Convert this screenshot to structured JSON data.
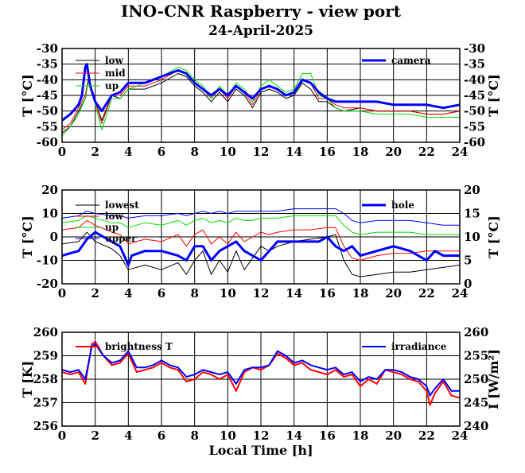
{
  "title": "INO-CNR Raspberry - view port",
  "subtitle": "24-April-2025",
  "colors": {
    "black": "#000000",
    "red": "#ff0000",
    "green": "#00dd00",
    "blue": "#0000ff"
  },
  "chart_data": [
    {
      "type": "line",
      "x_ticks": [
        "0",
        "2",
        "4",
        "6",
        "8",
        "10",
        "12",
        "14",
        "16",
        "18",
        "20",
        "22",
        "24"
      ],
      "xlim": [
        0,
        24
      ],
      "ylabel": "T [°C]",
      "ylabel_right": "T [°C]",
      "ylim": [
        -60,
        -30
      ],
      "y_ticks": [
        "-30",
        "-35",
        "-40",
        "-45",
        "-50",
        "-55",
        "-60"
      ],
      "y_ticks_right": [
        "-30",
        "-35",
        "-40",
        "-45",
        "-50",
        "-55",
        "-60"
      ],
      "grid": true,
      "series": [
        {
          "name": "low",
          "color": "#000000",
          "width": 1,
          "x": [
            0,
            0.5,
            1,
            1.4,
            1.6,
            2,
            2.4,
            3,
            3.5,
            4,
            5,
            6,
            7,
            7.5,
            8,
            8.5,
            9,
            9.5,
            10,
            10.5,
            11,
            11.5,
            12,
            12.5,
            13,
            13.5,
            14,
            14.5,
            15,
            15.5,
            16,
            16.5,
            17,
            18,
            19,
            20,
            21,
            22,
            23,
            24
          ],
          "y": [
            -57,
            -55,
            -50,
            -46,
            -40,
            -47,
            -53,
            -45,
            -46,
            -43,
            -43,
            -41,
            -38,
            -39,
            -42,
            -44,
            -47,
            -44,
            -47,
            -43,
            -45,
            -49,
            -44,
            -43,
            -44,
            -46,
            -45,
            -41,
            -43,
            -47,
            -47,
            -49,
            -50,
            -49,
            -50,
            -50,
            -50,
            -51,
            -51,
            -50
          ]
        },
        {
          "name": "mid",
          "color": "#ff0000",
          "width": 1,
          "x": [
            0,
            0.5,
            1,
            1.4,
            1.6,
            2,
            2.4,
            3,
            3.5,
            4,
            5,
            6,
            7,
            7.5,
            8,
            8.5,
            9,
            9.5,
            10,
            10.5,
            11,
            11.5,
            12,
            12.5,
            13,
            13.5,
            14,
            14.5,
            15,
            15.5,
            16,
            16.5,
            17,
            18,
            19,
            20,
            21,
            22,
            23,
            24
          ],
          "y": [
            -56,
            -54,
            -49,
            -45,
            -39,
            -47,
            -54,
            -45,
            -45,
            -42,
            -42,
            -40,
            -37,
            -38,
            -41,
            -43,
            -46,
            -43,
            -46,
            -42,
            -44,
            -48,
            -43,
            -42,
            -43,
            -45,
            -44,
            -40,
            -41,
            -46,
            -46,
            -48,
            -49,
            -49,
            -50,
            -50,
            -50,
            -51,
            -51,
            -50
          ]
        },
        {
          "name": "up",
          "color": "#00dd00",
          "width": 1,
          "x": [
            0,
            0.5,
            1,
            1.4,
            1.6,
            2,
            2.4,
            3,
            3.5,
            4,
            5,
            6,
            7,
            7.5,
            8,
            8.5,
            9,
            9.5,
            10,
            10.5,
            11,
            11.5,
            12,
            12.5,
            13,
            13.5,
            14,
            14.5,
            15,
            15.5,
            16,
            16.5,
            17,
            18,
            19,
            20,
            21,
            22,
            23,
            24
          ],
          "y": [
            -58,
            -55,
            -51,
            -46,
            -40,
            -48,
            -56,
            -46,
            -46,
            -43,
            -41,
            -39,
            -36,
            -37,
            -40,
            -42,
            -46,
            -42,
            -45,
            -41,
            -43,
            -47,
            -42,
            -40,
            -42,
            -44,
            -43,
            -38,
            -38,
            -45,
            -46,
            -49,
            -50,
            -50,
            -51,
            -51,
            -51,
            -52,
            -52,
            -52
          ]
        },
        {
          "name": "camera",
          "color": "#0000ff",
          "width": 3,
          "x": [
            0,
            0.5,
            1,
            1.2,
            1.4,
            1.5,
            1.7,
            2,
            2.4,
            3,
            3.5,
            4,
            5,
            6,
            7,
            7.5,
            8,
            8.5,
            9,
            9.5,
            10,
            10.5,
            11,
            11.5,
            12,
            12.5,
            13,
            13.5,
            14,
            14.5,
            15,
            15.5,
            16,
            16.5,
            17,
            18,
            19,
            20,
            21,
            22,
            23,
            24
          ],
          "y": [
            -53,
            -51,
            -48,
            -45,
            -36,
            -35,
            -42,
            -47,
            -50,
            -45,
            -44,
            -41,
            -41,
            -39,
            -37,
            -38,
            -41,
            -43,
            -45,
            -43,
            -45,
            -42,
            -44,
            -46,
            -43,
            -42,
            -43,
            -45,
            -44,
            -40,
            -41,
            -44,
            -46,
            -47,
            -47,
            -47,
            -47,
            -48,
            -48,
            -48,
            -49,
            -48
          ]
        }
      ],
      "legend": [
        "low",
        "mid",
        "up",
        "camera"
      ]
    },
    {
      "type": "line",
      "x_ticks": [
        "0",
        "2",
        "4",
        "6",
        "8",
        "10",
        "12",
        "14",
        "16",
        "18",
        "20",
        "22",
        "24"
      ],
      "xlim": [
        0,
        24
      ],
      "ylabel": "T [°C]",
      "ylabel_right": "T [°C]",
      "ylim": [
        -20,
        20
      ],
      "y_ticks": [
        "20",
        "10",
        "0",
        "-10",
        "-20"
      ],
      "ylim_right": [
        0,
        20
      ],
      "y_ticks_right": [
        "20",
        "15",
        "10",
        "5",
        "0"
      ],
      "grid": true,
      "series": [
        {
          "name": "lowest",
          "color": "#000000",
          "width": 1,
          "x": [
            0,
            1,
            1.5,
            2,
            3,
            3.5,
            4,
            5,
            6,
            7,
            7.5,
            8,
            8.5,
            9,
            9.5,
            10,
            10.5,
            11,
            11.5,
            12,
            12.5,
            13,
            14,
            15,
            16,
            16.5,
            17,
            17.5,
            18,
            19,
            20,
            21,
            22,
            23,
            24
          ],
          "y": [
            -3,
            -2,
            2,
            -2,
            -5,
            -8,
            -14,
            -12,
            -14,
            -11,
            -16,
            -10,
            -6,
            -16,
            -10,
            -15,
            -6,
            -14,
            -9,
            -4,
            -6,
            -4,
            -2,
            -1,
            0,
            1,
            -10,
            -16,
            -17,
            -16,
            -15,
            -15,
            -14,
            -13,
            -12
          ]
        },
        {
          "name": "low",
          "color": "#ff0000",
          "width": 1,
          "x": [
            0,
            1,
            1.5,
            2,
            3,
            3.5,
            4,
            5,
            6,
            7,
            7.5,
            8,
            8.5,
            9,
            9.5,
            10,
            10.5,
            11,
            11.5,
            12,
            12.5,
            13,
            14,
            15,
            16,
            16.5,
            17,
            17.5,
            18,
            19,
            20,
            21,
            22,
            23,
            24
          ],
          "y": [
            3,
            4,
            7,
            5,
            2,
            1,
            -3,
            -1,
            -2,
            1,
            -4,
            1,
            3,
            -3,
            0,
            -3,
            2,
            -2,
            0,
            2,
            1,
            2,
            3,
            3,
            4,
            4,
            -4,
            -9,
            -10,
            -8,
            -7,
            -7,
            -6,
            -6,
            -6
          ]
        },
        {
          "name": "up",
          "color": "#00dd00",
          "width": 1,
          "x": [
            0,
            1,
            1.5,
            2,
            3,
            3.5,
            4,
            5,
            6,
            7,
            7.5,
            8,
            8.5,
            9,
            9.5,
            10,
            10.5,
            11,
            11.5,
            12,
            12.5,
            13,
            14,
            15,
            16,
            16.5,
            17,
            17.5,
            18,
            19,
            20,
            21,
            22,
            23,
            24
          ],
          "y": [
            6,
            7,
            9,
            8,
            6,
            6,
            4,
            6,
            5,
            7,
            5,
            7,
            8,
            6,
            7,
            6,
            8,
            7,
            7,
            8,
            8,
            8,
            9,
            9,
            9,
            9,
            5,
            2,
            1,
            2,
            2,
            2,
            1,
            1,
            1
          ]
        },
        {
          "name": "upper",
          "color": "#0000ff",
          "width": 1,
          "x": [
            0,
            1,
            1.5,
            2,
            3,
            3.5,
            4,
            5,
            6,
            7,
            7.5,
            8,
            8.5,
            9,
            9.5,
            10,
            10.5,
            11,
            11.5,
            12,
            12.5,
            13,
            14,
            15,
            16,
            16.5,
            17,
            17.5,
            18,
            19,
            20,
            21,
            22,
            23,
            24
          ],
          "y": [
            8,
            9,
            11,
            10,
            9,
            9,
            8,
            9,
            9,
            10,
            9,
            10,
            11,
            10,
            11,
            10,
            11,
            11,
            11,
            11,
            11,
            11,
            12,
            12,
            12,
            12,
            10,
            7,
            6,
            7,
            7,
            7,
            6,
            5,
            5
          ]
        },
        {
          "name": "hole",
          "color": "#0000ff",
          "width": 3,
          "axis": "right",
          "x": [
            0,
            0.5,
            1,
            1.5,
            2,
            2.5,
            3,
            3.5,
            4,
            4.2,
            5,
            6,
            7,
            7.5,
            8,
            8.5,
            9,
            9.5,
            10,
            10.5,
            11,
            11.5,
            12,
            12.5,
            13,
            14,
            15,
            15.5,
            16,
            16.5,
            17,
            17.5,
            18,
            19,
            20,
            21,
            22,
            22.5,
            23,
            24
          ],
          "y": [
            6,
            6.5,
            7,
            9.5,
            11,
            10,
            9,
            8,
            4,
            6,
            7,
            7,
            6,
            5,
            8,
            8,
            5,
            7,
            8,
            9,
            7,
            6,
            5,
            7,
            9,
            9,
            9,
            9,
            10,
            8,
            7,
            8,
            6,
            7,
            8,
            7,
            5,
            7,
            6,
            6
          ]
        }
      ],
      "legend": [
        "lowest",
        "low",
        "up",
        "upper",
        "hole"
      ]
    },
    {
      "type": "line",
      "x_ticks": [
        "0",
        "2",
        "4",
        "6",
        "8",
        "10",
        "12",
        "14",
        "16",
        "18",
        "20",
        "22",
        "24"
      ],
      "xlim": [
        0,
        24
      ],
      "xlabel": "Local Time [h]",
      "ylabel": "T [K]",
      "ylabel_right": "I [W/m²]",
      "ylim": [
        256,
        260
      ],
      "y_ticks": [
        "260",
        "259",
        "258",
        "257",
        "256"
      ],
      "ylim_right": [
        240,
        260
      ],
      "y_ticks_right": [
        "260",
        "255",
        "250",
        "245",
        "240"
      ],
      "grid": true,
      "series": [
        {
          "name": "brightness T",
          "color": "#ff0000",
          "width": 2,
          "x": [
            0,
            0.5,
            1,
            1.4,
            1.8,
            2,
            2.5,
            3,
            3.5,
            4,
            4.5,
            5,
            5.5,
            6,
            6.5,
            7,
            7.5,
            8,
            8.5,
            9,
            9.5,
            10,
            10.5,
            11,
            11.5,
            12,
            12.5,
            13,
            13.5,
            14,
            14.5,
            15,
            15.5,
            16,
            16.5,
            17,
            17.5,
            18,
            18.5,
            19,
            19.5,
            20,
            20.5,
            21,
            21.5,
            22,
            22.2,
            22.5,
            23,
            23.5,
            24
          ],
          "y": [
            258.3,
            258.2,
            258.3,
            257.8,
            259.5,
            259.6,
            259,
            258.6,
            258.7,
            259.1,
            258.3,
            258.4,
            258.5,
            258.7,
            258.5,
            258.4,
            257.9,
            258,
            258.3,
            258.2,
            258,
            258.2,
            257.5,
            258.3,
            258.5,
            258.4,
            258.6,
            259.1,
            258.9,
            258.6,
            258.7,
            258.4,
            258.3,
            258.2,
            258.4,
            258.1,
            258.2,
            257.7,
            258,
            257.8,
            258.4,
            258.3,
            258.2,
            258,
            257.9,
            257.5,
            256.9,
            257.4,
            257.9,
            257.3,
            257.2
          ]
        },
        {
          "name": "irradiance",
          "color": "#0000ff",
          "width": 2,
          "axis": "right",
          "x": [
            0,
            0.5,
            1,
            1.4,
            1.8,
            2,
            2.5,
            3,
            3.5,
            4,
            4.5,
            5,
            5.5,
            6,
            6.5,
            7,
            7.5,
            8,
            8.5,
            9,
            9.5,
            10,
            10.5,
            11,
            11.5,
            12,
            12.5,
            13,
            13.5,
            14,
            14.5,
            15,
            15.5,
            16,
            16.5,
            17,
            17.5,
            18,
            18.5,
            19,
            19.5,
            20,
            20.5,
            21,
            21.5,
            22,
            22.2,
            22.5,
            23,
            23.5,
            24
          ],
          "y": [
            252,
            251.5,
            252,
            250,
            257,
            257.5,
            255,
            253.5,
            254,
            256,
            252.5,
            252.5,
            253,
            254,
            253,
            252.5,
            250.5,
            251,
            252,
            251.5,
            251,
            251.5,
            249,
            252,
            252.5,
            252.5,
            253,
            256,
            255,
            253.5,
            254,
            253,
            252.5,
            252,
            252.5,
            251,
            251.5,
            249.5,
            250.5,
            250,
            252,
            252,
            251.5,
            250.5,
            250,
            248.5,
            246.5,
            248,
            250,
            247.5,
            247.5
          ]
        }
      ],
      "legend": [
        "brightness T",
        "irradiance"
      ]
    }
  ]
}
